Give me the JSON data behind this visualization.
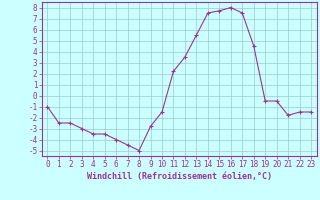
{
  "x": [
    0,
    1,
    2,
    3,
    4,
    5,
    6,
    7,
    8,
    9,
    10,
    11,
    12,
    13,
    14,
    15,
    16,
    17,
    18,
    19,
    20,
    21,
    22,
    23
  ],
  "y": [
    -1,
    -2.5,
    -2.5,
    -3,
    -3.5,
    -3.5,
    -4,
    -4.5,
    -5,
    -2.8,
    -1.5,
    2.2,
    3.5,
    5.5,
    7.5,
    7.7,
    8,
    7.5,
    4.5,
    -0.5,
    -0.5,
    -1.8,
    -1.5,
    -1.5
  ],
  "line_color": "#993399",
  "marker_color": "#993399",
  "bg_color": "#ccffff",
  "grid_color": "#99cccc",
  "xlabel": "Windchill (Refroidissement éolien,°C)",
  "xlim": [
    -0.5,
    23.5
  ],
  "ylim": [
    -5.5,
    8.5
  ],
  "yticks": [
    -5,
    -4,
    -3,
    -2,
    -1,
    0,
    1,
    2,
    3,
    4,
    5,
    6,
    7,
    8
  ],
  "xticks": [
    0,
    1,
    2,
    3,
    4,
    5,
    6,
    7,
    8,
    9,
    10,
    11,
    12,
    13,
    14,
    15,
    16,
    17,
    18,
    19,
    20,
    21,
    22,
    23
  ],
  "tick_color": "#993399",
  "label_color": "#993399",
  "axis_color": "#993399",
  "font_size": 5.5
}
